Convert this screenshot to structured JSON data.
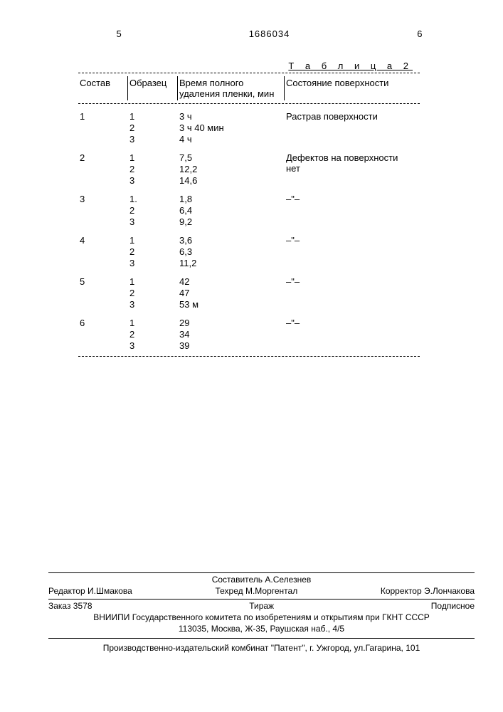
{
  "header": {
    "left_page": "5",
    "patent_number": "1686034",
    "right_page": "6"
  },
  "table": {
    "label": "Т а б л и ц а  2",
    "columns": {
      "sostav": "Состав",
      "obrazets": "Образец",
      "vremya": "Время полного удаления пленки, мин",
      "sostoyanie": "Состояние поверхности"
    },
    "groups": [
      {
        "sostav": "1",
        "rows": [
          {
            "obraz": "1",
            "vremya": "3 ч"
          },
          {
            "obraz": "2",
            "vremya": "3 ч 40 мин"
          },
          {
            "obraz": "3",
            "vremya": "4 ч"
          }
        ],
        "sost": "Растрав поверхности"
      },
      {
        "sostav": "2",
        "rows": [
          {
            "obraz": "1",
            "vremya": "7,5"
          },
          {
            "obraz": "2",
            "vremya": "12,2"
          },
          {
            "obraz": "3",
            "vremya": "14,6"
          }
        ],
        "sost": "Дефектов на поверхности нет"
      },
      {
        "sostav": "3",
        "rows": [
          {
            "obraz": "1.",
            "vremya": "1,8"
          },
          {
            "obraz": "2",
            "vremya": "6,4"
          },
          {
            "obraz": "3",
            "vremya": "9,2"
          }
        ],
        "sost": "–\"–"
      },
      {
        "sostav": "4",
        "rows": [
          {
            "obraz": "1",
            "vremya": "3,6"
          },
          {
            "obraz": "2",
            "vremya": "6,3"
          },
          {
            "obraz": "3",
            "vremya": "11,2"
          }
        ],
        "sost": "–\"–"
      },
      {
        "sostav": "5",
        "rows": [
          {
            "obraz": "1",
            "vremya": "42"
          },
          {
            "obraz": "2",
            "vremya": "47"
          },
          {
            "obraz": "3",
            "vremya": "53 м"
          }
        ],
        "sost": "–\"–"
      },
      {
        "sostav": "6",
        "rows": [
          {
            "obraz": "1",
            "vremya": "29"
          },
          {
            "obraz": "2",
            "vremya": "34"
          },
          {
            "obraz": "3",
            "vremya": "39"
          }
        ],
        "sost": "–\"–"
      }
    ]
  },
  "footer": {
    "compiler": "Составитель А.Селезнев",
    "editor": "Редактор И.Шмакова",
    "techred": "Техред М.Моргентал",
    "corrector": "Корректор Э.Лончакова",
    "order": "Заказ 3578",
    "tirazh": "Тираж",
    "podpisnoe": "Подписное",
    "org1": "ВНИИПИ Государственного комитета по изобретениям и открытиям при ГКНТ СССР",
    "org2": "113035, Москва, Ж-35, Раушская наб., 4/5",
    "publisher": "Производственно-издательский комбинат \"Патент\", г. Ужгород, ул.Гагарина, 101"
  }
}
